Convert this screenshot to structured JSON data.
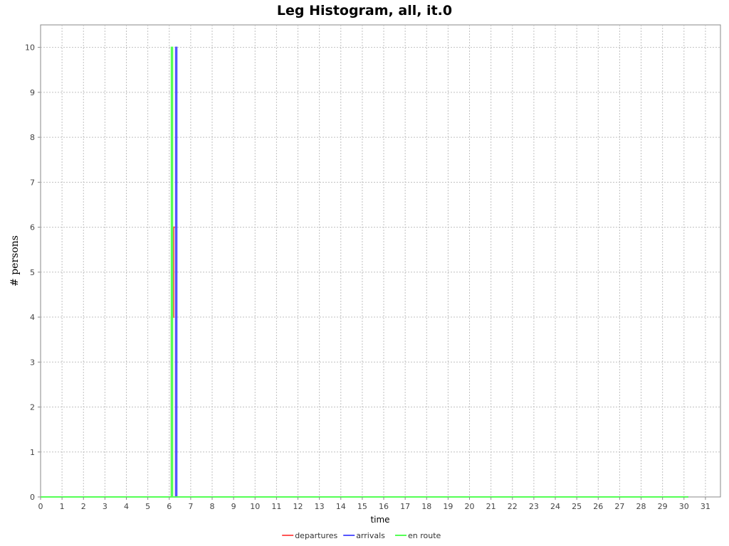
{
  "chart_data": {
    "type": "line",
    "title": "Leg Histogram, all, it.0",
    "xlabel": "time",
    "ylabel": "# persons",
    "xlim": [
      0,
      31.7
    ],
    "ylim": [
      0,
      10.5
    ],
    "x_ticks": [
      0,
      1,
      2,
      3,
      4,
      5,
      6,
      7,
      8,
      9,
      10,
      11,
      12,
      13,
      14,
      15,
      16,
      17,
      18,
      19,
      20,
      21,
      22,
      23,
      24,
      25,
      26,
      27,
      28,
      29,
      30,
      31
    ],
    "y_ticks": [
      0,
      1,
      2,
      3,
      4,
      5,
      6,
      7,
      8,
      9,
      10
    ],
    "grid": true,
    "legend": "bottom",
    "series": [
      {
        "name": "departures",
        "color": "#ff5555",
        "points": [
          [
            0,
            0
          ],
          [
            6.1,
            0
          ],
          [
            6.1,
            4
          ],
          [
            6.2,
            4
          ],
          [
            6.2,
            6
          ],
          [
            6.3,
            6
          ],
          [
            6.3,
            0
          ],
          [
            30.2,
            0
          ]
        ]
      },
      {
        "name": "arrivals",
        "color": "#5555ff",
        "points": [
          [
            0,
            0
          ],
          [
            6.3,
            0
          ],
          [
            6.3,
            10
          ],
          [
            6.35,
            10
          ],
          [
            6.35,
            0
          ],
          [
            30.2,
            0
          ]
        ]
      },
      {
        "name": "en route",
        "color": "#55ff55",
        "points": [
          [
            0,
            0
          ],
          [
            6.1,
            0
          ],
          [
            6.1,
            10
          ],
          [
            6.15,
            10
          ],
          [
            6.15,
            0
          ],
          [
            30.2,
            0
          ]
        ]
      }
    ]
  }
}
